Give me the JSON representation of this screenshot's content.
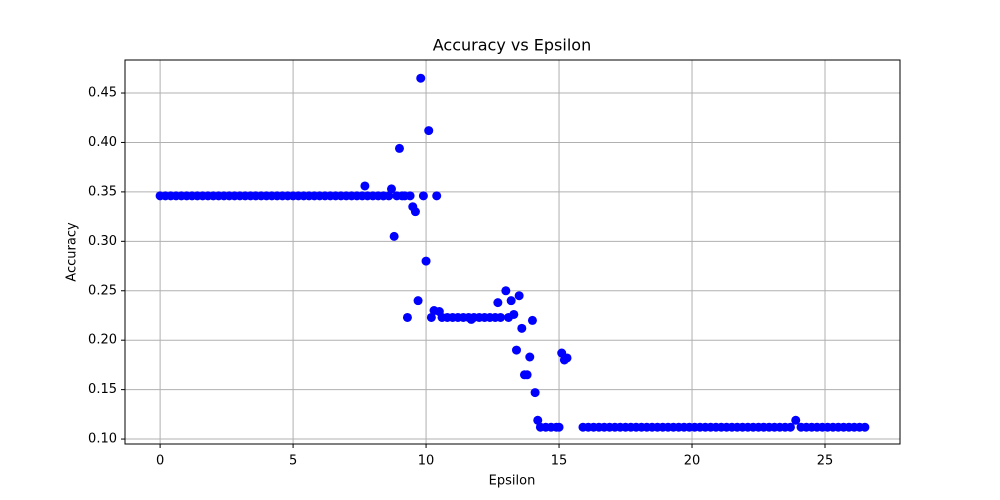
{
  "chart_data": {
    "type": "scatter",
    "title": "Accuracy vs Epsilon",
    "xlabel": "Epsilon",
    "ylabel": "Accuracy",
    "color": "#0000ff",
    "grid": true,
    "xlim": [
      -1.32,
      27.82
    ],
    "ylim": [
      0.095,
      0.4834
    ],
    "xticks": [
      0,
      5,
      10,
      15,
      20,
      25
    ],
    "yticks": [
      {
        "value": 0.1,
        "label": "0.10"
      },
      0.15,
      {
        "value": 0.2,
        "label": "0.20"
      },
      0.25,
      {
        "value": 0.3,
        "label": "0.30"
      },
      0.35,
      {
        "value": 0.4,
        "label": "0.40"
      },
      0.45
    ],
    "x": [
      0,
      0.2,
      0.4,
      0.6,
      0.8,
      1,
      1.2,
      1.4,
      1.6,
      1.8,
      2,
      2.2,
      2.4,
      2.6,
      2.8,
      3,
      3.2,
      3.4,
      3.6,
      3.8,
      4,
      4.2,
      4.4,
      4.6,
      4.8,
      5,
      5.2,
      5.4,
      5.6,
      5.8,
      6,
      6.2,
      6.4,
      6.6,
      6.8,
      7,
      7.2,
      7.4,
      7.6,
      7.8,
      8,
      8.2,
      8.4,
      8.6,
      7.7,
      8.7,
      8.8,
      8.9,
      9.0,
      9.1,
      9.2,
      9.3,
      9.4,
      9.5,
      9.6,
      9.7,
      9.8,
      9.9,
      10.0,
      10.1,
      10.2,
      10.3,
      10.4,
      10.5,
      10.6,
      10.8,
      11,
      11.2,
      11.4,
      11.6,
      11.8,
      12,
      12.2,
      12.4,
      12.6,
      12.8,
      11.7,
      12.7,
      13.0,
      13.1,
      13.2,
      13.3,
      13.4,
      13.5,
      13.6,
      13.7,
      13.8,
      13.9,
      14.0,
      14.1,
      14.2,
      14.3,
      14.5,
      14.7,
      14.9,
      15.0,
      15.1,
      15.2,
      15.3,
      15.9,
      16.1,
      16.3,
      16.5,
      16.7,
      16.9,
      17.1,
      17.3,
      17.5,
      17.7,
      17.9,
      18.1,
      18.3,
      18.5,
      18.7,
      18.9,
      19.1,
      19.3,
      19.5,
      19.7,
      19.9,
      20.1,
      20.3,
      20.5,
      20.7,
      20.9,
      21.1,
      21.3,
      21.5,
      21.7,
      21.9,
      22.1,
      22.3,
      22.5,
      22.7,
      22.9,
      23.1,
      23.3,
      23.5,
      23.7,
      23.9,
      24.1,
      24.3,
      24.5,
      24.7,
      24.9,
      25.1,
      25.3,
      25.5,
      25.7,
      25.9,
      26.1,
      26.3,
      26.5
    ],
    "values": [
      0.346,
      0.346,
      0.346,
      0.346,
      0.346,
      0.346,
      0.346,
      0.346,
      0.346,
      0.346,
      0.346,
      0.346,
      0.346,
      0.346,
      0.346,
      0.346,
      0.346,
      0.346,
      0.346,
      0.346,
      0.346,
      0.346,
      0.346,
      0.346,
      0.346,
      0.346,
      0.346,
      0.346,
      0.346,
      0.346,
      0.346,
      0.346,
      0.346,
      0.346,
      0.346,
      0.346,
      0.346,
      0.346,
      0.346,
      0.346,
      0.346,
      0.346,
      0.346,
      0.346,
      0.356,
      0.353,
      0.305,
      0.346,
      0.394,
      0.346,
      0.346,
      0.223,
      0.346,
      0.335,
      0.33,
      0.24,
      0.465,
      0.346,
      0.28,
      0.412,
      0.223,
      0.23,
      0.346,
      0.229,
      0.223,
      0.223,
      0.223,
      0.223,
      0.223,
      0.223,
      0.223,
      0.223,
      0.223,
      0.223,
      0.223,
      0.223,
      0.221,
      0.238,
      0.25,
      0.223,
      0.24,
      0.226,
      0.19,
      0.245,
      0.212,
      0.165,
      0.165,
      0.183,
      0.22,
      0.147,
      0.119,
      0.112,
      0.112,
      0.112,
      0.112,
      0.112,
      0.187,
      0.18,
      0.182,
      0.112,
      0.112,
      0.112,
      0.112,
      0.112,
      0.112,
      0.112,
      0.112,
      0.112,
      0.112,
      0.112,
      0.112,
      0.112,
      0.112,
      0.112,
      0.112,
      0.112,
      0.112,
      0.112,
      0.112,
      0.112,
      0.112,
      0.112,
      0.112,
      0.112,
      0.112,
      0.112,
      0.112,
      0.112,
      0.112,
      0.112,
      0.112,
      0.112,
      0.112,
      0.112,
      0.112,
      0.112,
      0.112,
      0.112,
      0.112,
      0.119,
      0.112,
      0.112,
      0.112,
      0.112,
      0.112,
      0.112,
      0.112,
      0.112,
      0.112,
      0.112,
      0.112,
      0.112,
      0.112
    ]
  }
}
